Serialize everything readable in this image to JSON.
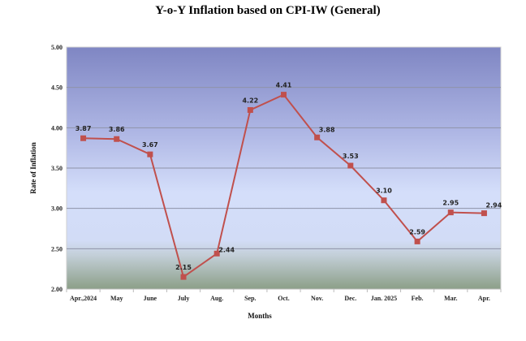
{
  "chart_data": {
    "type": "line",
    "title": "Y-o-Y Inflation based on CPI-IW (General)",
    "xlabel": "Months",
    "ylabel": "Rate of Inflation",
    "categories": [
      "Apr.,2024",
      "May",
      "June",
      "July",
      "Aug.",
      "Sep.",
      "Oct.",
      "Nov.",
      "Dec.",
      "Jan. 2025",
      "Feb.",
      "Mar.",
      "Apr."
    ],
    "series": [
      {
        "name": "Rate of Inflation",
        "values": [
          3.87,
          3.86,
          3.67,
          2.15,
          2.44,
          4.22,
          4.41,
          3.88,
          3.53,
          3.1,
          2.59,
          2.95,
          2.94
        ],
        "color": "#c0504d"
      }
    ],
    "data_labels": [
      "3.87",
      "3.86",
      "3.67",
      "2.15",
      "2.44",
      "4.22",
      "4.41",
      "3.88",
      "3.53",
      "3.10",
      "2.59",
      "2.95",
      "2.94"
    ],
    "ylim": [
      2.0,
      5.0
    ],
    "yticks": [
      "2.00",
      "2.50",
      "3.00",
      "3.50",
      "4.00",
      "4.50",
      "5.00"
    ],
    "grid": true,
    "legend": "none"
  }
}
